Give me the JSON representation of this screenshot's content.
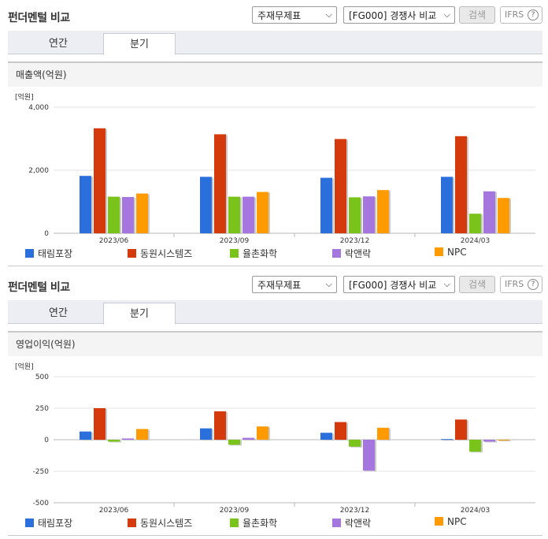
{
  "panels": [
    {
      "header": {
        "title": "펀더멘털 비교",
        "select1": "주재무제표",
        "select2": "[FG000] 경쟁사 비교",
        "search": "검색",
        "ifrs": "IFRS",
        "ifrs_help": "?"
      },
      "tabs": [
        {
          "label": "연간",
          "active": false
        },
        {
          "label": "분기",
          "active": true
        }
      ],
      "chart_label": "매출액(억원)"
    },
    {
      "header": {
        "title": "펀더멘털 비교",
        "select1": "주재무제표",
        "select2": "[FG000] 경쟁사 비교",
        "search": "검색",
        "ifrs": "IFRS",
        "ifrs_help": "?"
      },
      "tabs": [
        {
          "label": "연간",
          "active": false
        },
        {
          "label": "분기",
          "active": true
        }
      ],
      "chart_label": "영업이익(억원)"
    }
  ],
  "colors": [
    "#2a6fdc",
    "#d43a0b",
    "#7ac31b",
    "#a577de",
    "#ff9a00"
  ],
  "chart_data": [
    {
      "type": "bar",
      "unit_label": "[억원]",
      "categories": [
        "2023/06",
        "2023/09",
        "2023/12",
        "2024/03"
      ],
      "ylim": [
        0,
        4000
      ],
      "yticks": [
        0,
        2000,
        4000
      ],
      "ytick_labels": [
        "0",
        "2,000",
        "4,000"
      ],
      "series": [
        {
          "name": "태림포장",
          "values": [
            1820,
            1790,
            1760,
            1790
          ]
        },
        {
          "name": "동원시스템즈",
          "values": [
            3330,
            3140,
            2990,
            3080
          ]
        },
        {
          "name": "율촌화학",
          "values": [
            1160,
            1160,
            1140,
            620
          ]
        },
        {
          "name": "락앤락",
          "values": [
            1150,
            1160,
            1170,
            1330
          ]
        },
        {
          "name": "NPC",
          "values": [
            1260,
            1310,
            1370,
            1120
          ]
        }
      ],
      "legend_position": "bottom",
      "grid": true
    },
    {
      "type": "bar",
      "unit_label": "[억원]",
      "categories": [
        "2023/06",
        "2023/09",
        "2023/12",
        "2024/03"
      ],
      "ylim": [
        -500,
        500
      ],
      "yticks": [
        -500,
        -250,
        0,
        250,
        500
      ],
      "ytick_labels": [
        "-500",
        "-250",
        "0",
        "250",
        "500"
      ],
      "series": [
        {
          "name": "태림포장",
          "values": [
            65,
            90,
            55,
            5
          ]
        },
        {
          "name": "동원시스템즈",
          "values": [
            250,
            225,
            140,
            160
          ]
        },
        {
          "name": "율촌화학",
          "values": [
            -15,
            -40,
            -55,
            -95
          ]
        },
        {
          "name": "락앤락",
          "values": [
            10,
            15,
            -245,
            -15
          ]
        },
        {
          "name": "NPC",
          "values": [
            85,
            105,
            95,
            0
          ]
        }
      ],
      "legend_position": "bottom",
      "grid": true
    }
  ]
}
